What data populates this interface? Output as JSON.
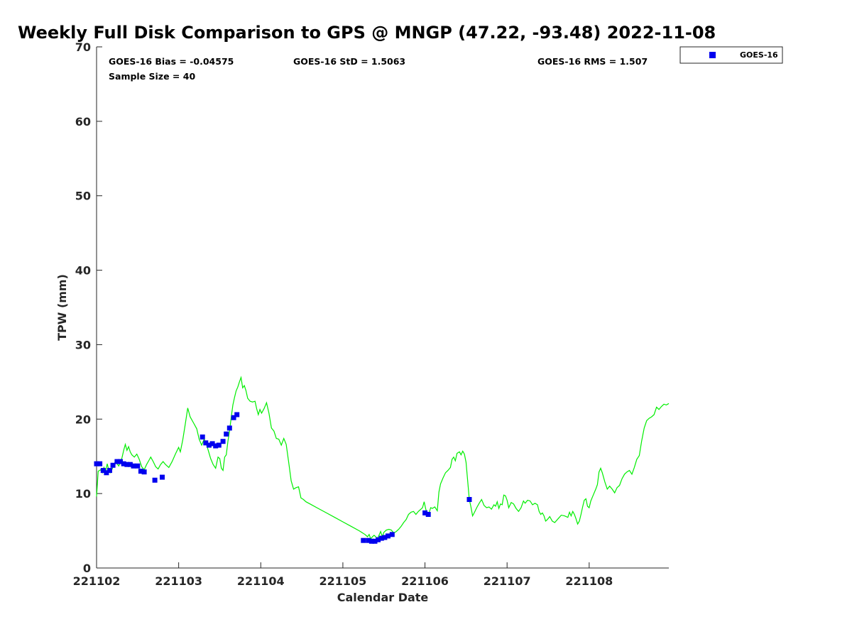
{
  "chart_data": {
    "type": "line",
    "title": "Weekly Full Disk Comparison to GPS @ MNGP (47.22, -93.48) 2022-11-08",
    "xlabel": "Calendar Date",
    "ylabel": "TPW (mm)",
    "xlim": [
      0,
      6.97
    ],
    "ylim": [
      0,
      70
    ],
    "x_ticks": [
      {
        "value": 0,
        "label": "221102"
      },
      {
        "value": 1,
        "label": "221103"
      },
      {
        "value": 2,
        "label": "221104"
      },
      {
        "value": 3,
        "label": "221105"
      },
      {
        "value": 4,
        "label": "221106"
      },
      {
        "value": 5,
        "label": "221107"
      },
      {
        "value": 6,
        "label": "221108"
      }
    ],
    "y_ticks": [
      0,
      10,
      20,
      30,
      40,
      50,
      60,
      70
    ],
    "x_unit": "days since 221102",
    "grid": false,
    "legend_position": "top-right-outside",
    "stats": {
      "bias": "GOES-16 Bias = -0.04575",
      "std": "GOES-16 StD = 1.5063",
      "rms": "GOES-16 RMS = 1.507",
      "sample": "Sample Size = 40"
    },
    "series": [
      {
        "name": "GPS",
        "kind": "line",
        "color": "#00ee00",
        "points": [
          [
            0.0,
            9.6
          ],
          [
            0.02,
            13.0
          ],
          [
            0.05,
            13.2
          ],
          [
            0.07,
            12.8
          ],
          [
            0.09,
            13.5
          ],
          [
            0.11,
            12.9
          ],
          [
            0.13,
            14.0
          ],
          [
            0.15,
            13.1
          ],
          [
            0.17,
            12.8
          ],
          [
            0.19,
            13.3
          ],
          [
            0.21,
            13.9
          ],
          [
            0.23,
            14.3
          ],
          [
            0.25,
            14.0
          ],
          [
            0.27,
            13.7
          ],
          [
            0.29,
            14.2
          ],
          [
            0.31,
            14.8
          ],
          [
            0.33,
            15.8
          ],
          [
            0.35,
            16.6
          ],
          [
            0.37,
            15.8
          ],
          [
            0.39,
            16.3
          ],
          [
            0.41,
            15.6
          ],
          [
            0.43,
            15.2
          ],
          [
            0.46,
            14.9
          ],
          [
            0.49,
            15.3
          ],
          [
            0.52,
            14.6
          ],
          [
            0.55,
            13.6
          ],
          [
            0.58,
            13.2
          ],
          [
            0.61,
            13.9
          ],
          [
            0.64,
            14.5
          ],
          [
            0.66,
            14.9
          ],
          [
            0.69,
            14.3
          ],
          [
            0.72,
            13.6
          ],
          [
            0.75,
            13.3
          ],
          [
            0.78,
            13.9
          ],
          [
            0.81,
            14.3
          ],
          [
            0.84,
            13.9
          ],
          [
            0.88,
            13.5
          ],
          [
            0.92,
            14.3
          ],
          [
            0.96,
            15.3
          ],
          [
            1.0,
            16.2
          ],
          [
            1.02,
            15.6
          ],
          [
            1.05,
            17.2
          ],
          [
            1.08,
            19.3
          ],
          [
            1.11,
            21.5
          ],
          [
            1.14,
            20.3
          ],
          [
            1.18,
            19.5
          ],
          [
            1.22,
            18.7
          ],
          [
            1.25,
            17.3
          ],
          [
            1.28,
            16.5
          ],
          [
            1.31,
            17.3
          ],
          [
            1.33,
            16.9
          ],
          [
            1.36,
            15.8
          ],
          [
            1.39,
            14.7
          ],
          [
            1.42,
            13.9
          ],
          [
            1.45,
            13.4
          ],
          [
            1.48,
            14.9
          ],
          [
            1.5,
            14.7
          ],
          [
            1.52,
            13.4
          ],
          [
            1.54,
            13.1
          ],
          [
            1.56,
            14.9
          ],
          [
            1.58,
            15.2
          ],
          [
            1.6,
            17.0
          ],
          [
            1.62,
            18.4
          ],
          [
            1.64,
            20.2
          ],
          [
            1.66,
            21.9
          ],
          [
            1.68,
            22.9
          ],
          [
            1.7,
            23.8
          ],
          [
            1.72,
            24.3
          ],
          [
            1.74,
            25.0
          ],
          [
            1.76,
            25.6
          ],
          [
            1.78,
            24.2
          ],
          [
            1.8,
            24.5
          ],
          [
            1.82,
            23.8
          ],
          [
            1.84,
            22.8
          ],
          [
            1.87,
            22.4
          ],
          [
            1.9,
            22.3
          ],
          [
            1.93,
            22.4
          ],
          [
            1.95,
            21.4
          ],
          [
            1.97,
            20.6
          ],
          [
            1.99,
            21.3
          ],
          [
            2.01,
            20.8
          ],
          [
            2.04,
            21.4
          ],
          [
            2.07,
            22.2
          ],
          [
            2.1,
            20.8
          ],
          [
            2.13,
            18.8
          ],
          [
            2.16,
            18.4
          ],
          [
            2.19,
            17.4
          ],
          [
            2.22,
            17.3
          ],
          [
            2.25,
            16.5
          ],
          [
            2.28,
            17.4
          ],
          [
            2.31,
            16.6
          ],
          [
            2.34,
            14.2
          ],
          [
            2.37,
            11.7
          ],
          [
            2.4,
            10.6
          ],
          [
            2.43,
            10.8
          ],
          [
            2.46,
            10.9
          ],
          [
            2.49,
            9.4
          ],
          [
            2.52,
            9.2
          ],
          [
            2.55,
            8.9
          ],
          [
            2.6,
            8.6
          ],
          [
            2.7,
            8.0
          ],
          [
            2.8,
            7.4
          ],
          [
            2.9,
            6.8
          ],
          [
            3.0,
            6.2
          ],
          [
            3.1,
            5.6
          ],
          [
            3.2,
            5.0
          ],
          [
            3.27,
            4.5
          ],
          [
            3.3,
            4.2
          ],
          [
            3.32,
            4.5
          ],
          [
            3.34,
            3.9
          ],
          [
            3.36,
            4.2
          ],
          [
            3.38,
            4.4
          ],
          [
            3.4,
            4.2
          ],
          [
            3.42,
            3.9
          ],
          [
            3.44,
            4.4
          ],
          [
            3.46,
            4.9
          ],
          [
            3.48,
            4.2
          ],
          [
            3.5,
            4.8
          ],
          [
            3.53,
            5.1
          ],
          [
            3.56,
            5.2
          ],
          [
            3.59,
            5.1
          ],
          [
            3.62,
            4.7
          ],
          [
            3.65,
            4.9
          ],
          [
            3.68,
            5.2
          ],
          [
            3.71,
            5.6
          ],
          [
            3.74,
            6.1
          ],
          [
            3.77,
            6.5
          ],
          [
            3.8,
            7.2
          ],
          [
            3.83,
            7.5
          ],
          [
            3.86,
            7.6
          ],
          [
            3.89,
            7.2
          ],
          [
            3.92,
            7.6
          ],
          [
            3.95,
            7.9
          ],
          [
            3.97,
            8.1
          ],
          [
            3.99,
            8.9
          ],
          [
            4.01,
            7.9
          ],
          [
            4.03,
            7.2
          ],
          [
            4.05,
            7.4
          ],
          [
            4.07,
            8.1
          ],
          [
            4.09,
            8.0
          ],
          [
            4.12,
            8.2
          ],
          [
            4.15,
            7.7
          ],
          [
            4.17,
            10.2
          ],
          [
            4.19,
            11.3
          ],
          [
            4.22,
            12.1
          ],
          [
            4.25,
            12.8
          ],
          [
            4.28,
            13.1
          ],
          [
            4.31,
            13.5
          ],
          [
            4.33,
            14.6
          ],
          [
            4.35,
            14.9
          ],
          [
            4.37,
            14.4
          ],
          [
            4.39,
            15.4
          ],
          [
            4.42,
            15.6
          ],
          [
            4.44,
            15.2
          ],
          [
            4.46,
            15.7
          ],
          [
            4.48,
            15.3
          ],
          [
            4.5,
            14.2
          ],
          [
            4.52,
            11.7
          ],
          [
            4.54,
            9.2
          ],
          [
            4.56,
            8.2
          ],
          [
            4.58,
            7.0
          ],
          [
            4.6,
            7.4
          ],
          [
            4.63,
            8.1
          ],
          [
            4.66,
            8.7
          ],
          [
            4.69,
            9.2
          ],
          [
            4.72,
            8.4
          ],
          [
            4.75,
            8.1
          ],
          [
            4.78,
            8.2
          ],
          [
            4.81,
            7.9
          ],
          [
            4.84,
            8.5
          ],
          [
            4.86,
            8.3
          ],
          [
            4.88,
            8.9
          ],
          [
            4.9,
            8.0
          ],
          [
            4.92,
            8.6
          ],
          [
            4.94,
            8.5
          ],
          [
            4.96,
            9.8
          ],
          [
            4.98,
            9.7
          ],
          [
            5.0,
            9.1
          ],
          [
            5.02,
            8.1
          ],
          [
            5.05,
            8.8
          ],
          [
            5.08,
            8.6
          ],
          [
            5.11,
            8.0
          ],
          [
            5.14,
            7.6
          ],
          [
            5.17,
            8.1
          ],
          [
            5.2,
            9.0
          ],
          [
            5.22,
            8.7
          ],
          [
            5.25,
            9.1
          ],
          [
            5.28,
            9.0
          ],
          [
            5.31,
            8.5
          ],
          [
            5.34,
            8.7
          ],
          [
            5.37,
            8.5
          ],
          [
            5.39,
            7.6
          ],
          [
            5.41,
            7.2
          ],
          [
            5.43,
            7.4
          ],
          [
            5.45,
            7.0
          ],
          [
            5.47,
            6.3
          ],
          [
            5.49,
            6.5
          ],
          [
            5.52,
            6.9
          ],
          [
            5.55,
            6.3
          ],
          [
            5.58,
            6.1
          ],
          [
            5.62,
            6.6
          ],
          [
            5.66,
            7.1
          ],
          [
            5.7,
            7.0
          ],
          [
            5.74,
            6.8
          ],
          [
            5.76,
            7.5
          ],
          [
            5.78,
            7.0
          ],
          [
            5.8,
            7.6
          ],
          [
            5.82,
            7.2
          ],
          [
            5.84,
            6.6
          ],
          [
            5.86,
            5.9
          ],
          [
            5.88,
            6.3
          ],
          [
            5.9,
            7.2
          ],
          [
            5.92,
            8.2
          ],
          [
            5.94,
            9.1
          ],
          [
            5.96,
            9.3
          ],
          [
            5.98,
            8.3
          ],
          [
            6.0,
            8.1
          ],
          [
            6.02,
            9.0
          ],
          [
            6.05,
            9.8
          ],
          [
            6.08,
            10.6
          ],
          [
            6.1,
            11.2
          ],
          [
            6.12,
            12.9
          ],
          [
            6.14,
            13.4
          ],
          [
            6.16,
            12.8
          ],
          [
            6.19,
            11.6
          ],
          [
            6.22,
            10.6
          ],
          [
            6.25,
            11.0
          ],
          [
            6.28,
            10.6
          ],
          [
            6.31,
            10.1
          ],
          [
            6.34,
            10.8
          ],
          [
            6.37,
            11.1
          ],
          [
            6.4,
            12.0
          ],
          [
            6.43,
            12.6
          ],
          [
            6.46,
            12.9
          ],
          [
            6.49,
            13.1
          ],
          [
            6.52,
            12.6
          ],
          [
            6.55,
            13.5
          ],
          [
            6.58,
            14.6
          ],
          [
            6.61,
            15.1
          ],
          [
            6.64,
            17.1
          ],
          [
            6.67,
            18.8
          ],
          [
            6.7,
            19.8
          ],
          [
            6.73,
            20.1
          ],
          [
            6.76,
            20.3
          ],
          [
            6.79,
            20.6
          ],
          [
            6.82,
            21.6
          ],
          [
            6.85,
            21.3
          ],
          [
            6.88,
            21.7
          ],
          [
            6.91,
            22.0
          ],
          [
            6.94,
            21.9
          ],
          [
            6.97,
            22.1
          ]
        ]
      },
      {
        "name": "GOES-16",
        "kind": "scatter",
        "color": "#0000ee",
        "points": [
          [
            0.0,
            14.0
          ],
          [
            0.04,
            14.0
          ],
          [
            0.08,
            13.1
          ],
          [
            0.12,
            12.8
          ],
          [
            0.16,
            13.1
          ],
          [
            0.2,
            13.8
          ],
          [
            0.25,
            14.3
          ],
          [
            0.29,
            14.3
          ],
          [
            0.33,
            14.0
          ],
          [
            0.37,
            13.9
          ],
          [
            0.41,
            13.9
          ],
          [
            0.45,
            13.7
          ],
          [
            0.5,
            13.7
          ],
          [
            0.54,
            13.0
          ],
          [
            0.58,
            12.9
          ],
          [
            0.71,
            11.8
          ],
          [
            0.8,
            12.2
          ],
          [
            1.29,
            17.6
          ],
          [
            1.33,
            16.8
          ],
          [
            1.37,
            16.5
          ],
          [
            1.41,
            16.7
          ],
          [
            1.45,
            16.4
          ],
          [
            1.49,
            16.5
          ],
          [
            1.54,
            17.0
          ],
          [
            1.58,
            18.0
          ],
          [
            1.62,
            18.8
          ],
          [
            1.67,
            20.2
          ],
          [
            1.71,
            20.6
          ],
          [
            3.25,
            3.7
          ],
          [
            3.31,
            3.7
          ],
          [
            3.35,
            3.6
          ],
          [
            3.39,
            3.6
          ],
          [
            3.43,
            3.8
          ],
          [
            3.47,
            4.0
          ],
          [
            3.51,
            4.1
          ],
          [
            3.55,
            4.3
          ],
          [
            3.6,
            4.5
          ],
          [
            4.0,
            7.4
          ],
          [
            4.04,
            7.2
          ],
          [
            4.54,
            9.2
          ]
        ]
      }
    ]
  },
  "legend": {
    "label": "GOES-16",
    "color": "#0000ee"
  }
}
